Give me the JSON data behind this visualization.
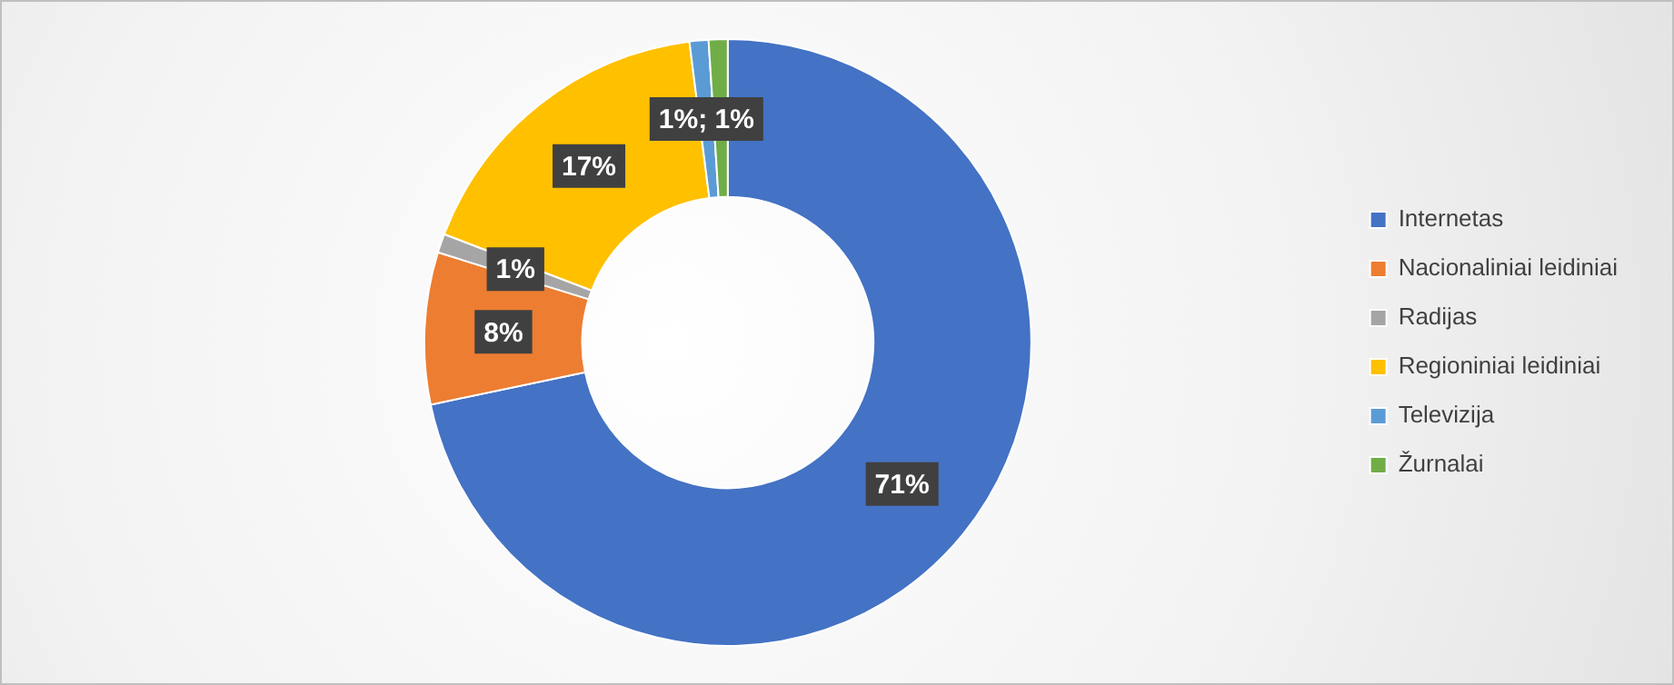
{
  "chart_data": {
    "type": "donut",
    "categories": [
      "Internetas",
      "Nacionaliniai leidiniai",
      "Radijas",
      "Regioniniai leidiniai",
      "Televizija",
      "Žurnalai"
    ],
    "values": [
      71,
      8,
      1,
      17,
      1,
      1
    ],
    "colors": [
      "#4472c4",
      "#ed7d31",
      "#a5a5a5",
      "#ffc000",
      "#5b9bd5",
      "#70ad47"
    ],
    "value_labels": [
      "71%",
      "8%",
      "1%",
      "17%",
      "1%; 1%",
      null
    ],
    "legend": "right"
  }
}
